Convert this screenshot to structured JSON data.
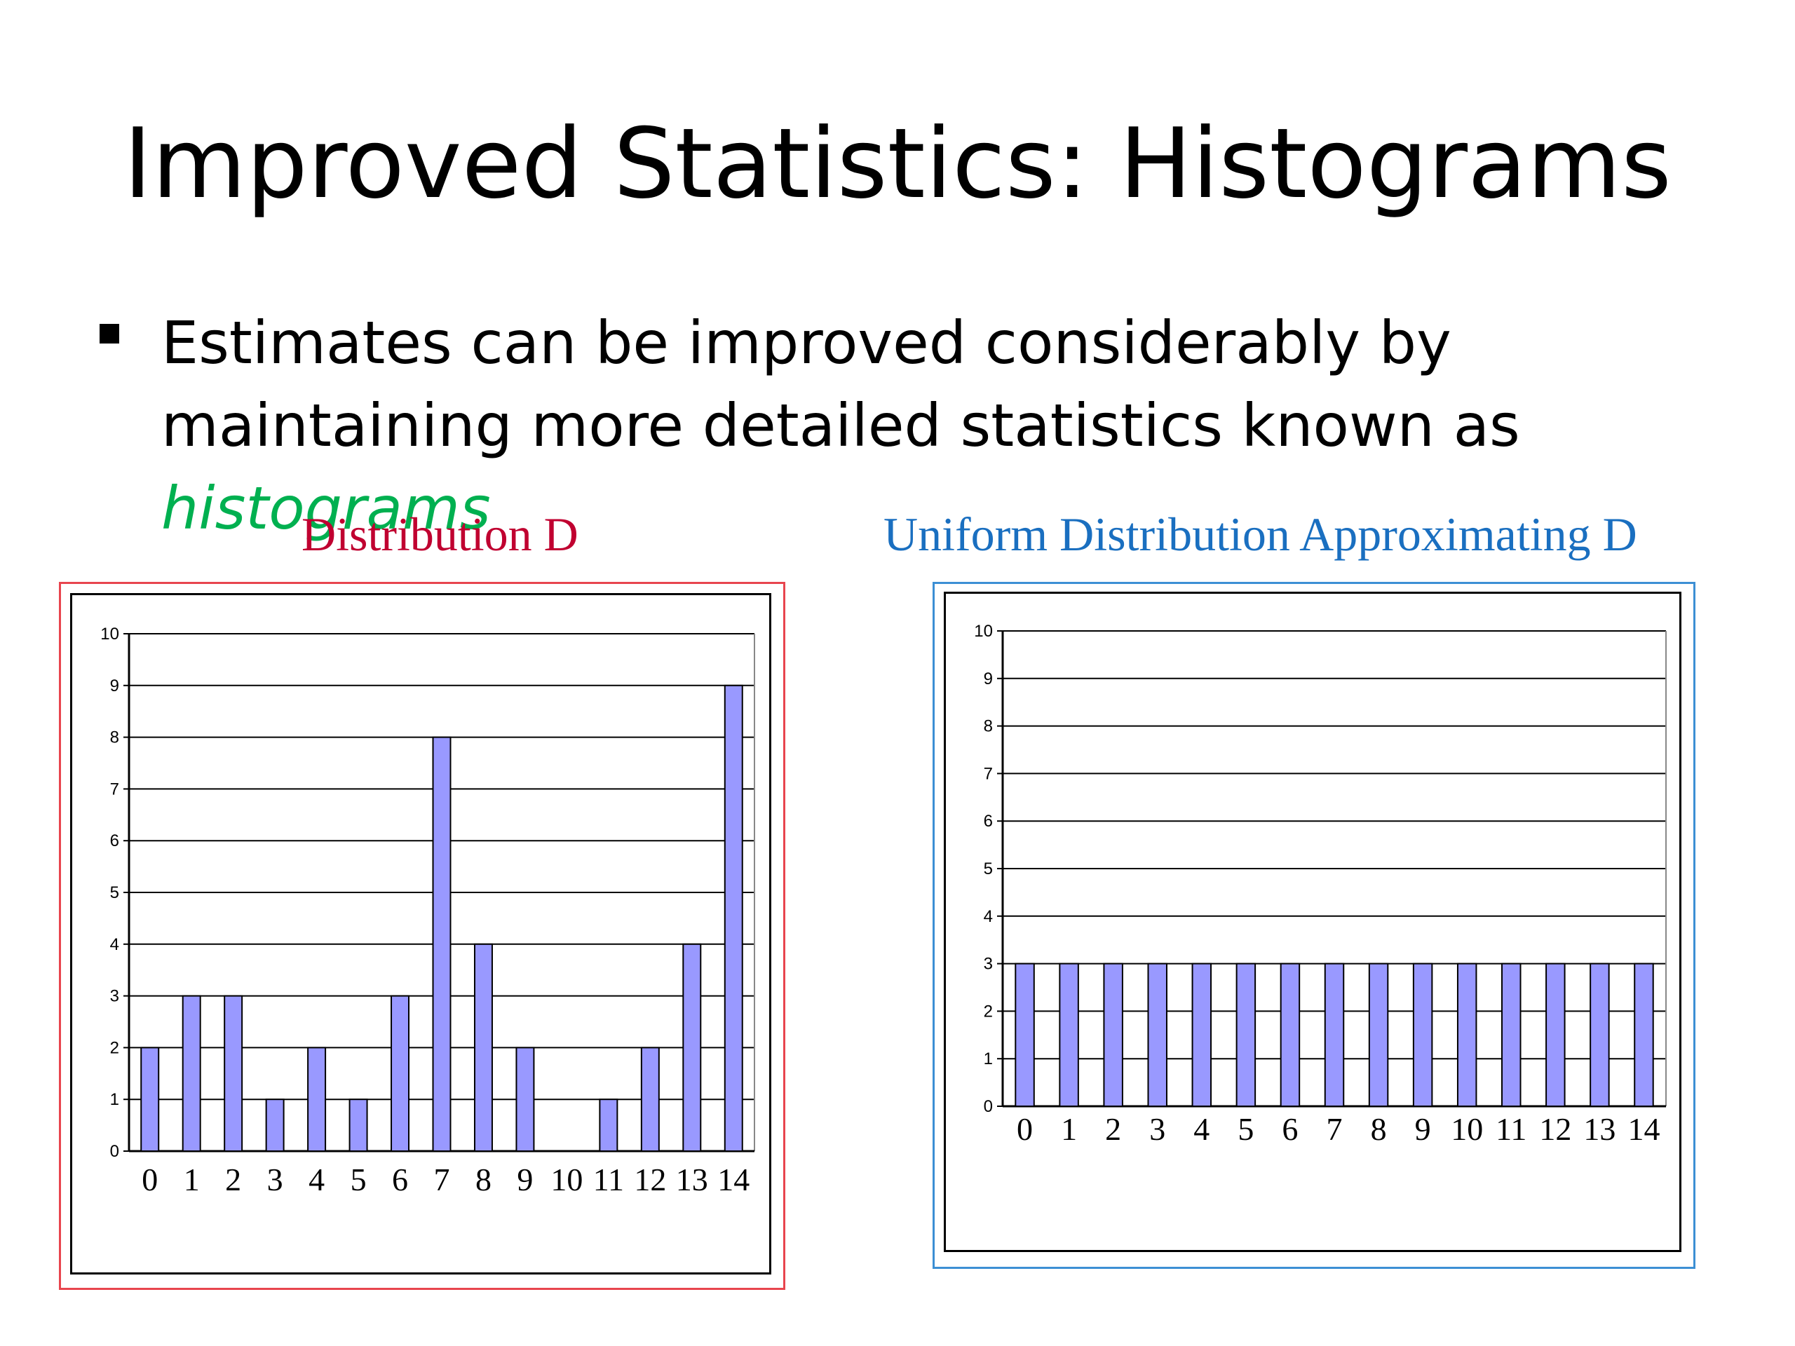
{
  "slide": {
    "title": "Improved Statistics: Histograms",
    "bullet": {
      "text_before": "Estimates can be improved considerably by maintaining more detailed statistics known as ",
      "emphasis": "histograms"
    }
  },
  "colors": {
    "bar_fill": "#9999ff",
    "left_title": "#c00030",
    "right_title": "#1a6fc0",
    "emphasis": "#00b050"
  },
  "chart_data": [
    {
      "type": "bar",
      "title": "Distribution D",
      "categories": [
        "0",
        "1",
        "2",
        "3",
        "4",
        "5",
        "6",
        "7",
        "8",
        "9",
        "10",
        "11",
        "12",
        "13",
        "14"
      ],
      "values": [
        2,
        3,
        3,
        1,
        2,
        1,
        3,
        8,
        4,
        2,
        0,
        1,
        2,
        4,
        9
      ],
      "ylim": [
        0,
        10
      ],
      "yticks": [
        "0",
        "1",
        "2",
        "3",
        "4",
        "5",
        "6",
        "7",
        "8",
        "9",
        "10"
      ],
      "grid": true
    },
    {
      "type": "bar",
      "title": "Uniform Distribution Approximating D",
      "categories": [
        "0",
        "1",
        "2",
        "3",
        "4",
        "5",
        "6",
        "7",
        "8",
        "9",
        "10",
        "11",
        "12",
        "13",
        "14"
      ],
      "values": [
        3,
        3,
        3,
        3,
        3,
        3,
        3,
        3,
        3,
        3,
        3,
        3,
        3,
        3,
        3
      ],
      "ylim": [
        0,
        10
      ],
      "yticks": [
        "0",
        "1",
        "2",
        "3",
        "4",
        "5",
        "6",
        "7",
        "8",
        "9",
        "10"
      ],
      "grid": true
    }
  ]
}
